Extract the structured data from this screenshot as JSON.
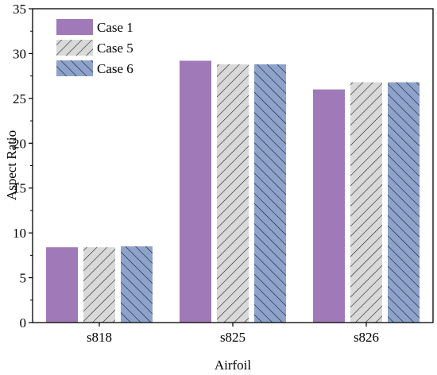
{
  "chart_data": {
    "type": "bar",
    "xlabel": "Airfoil",
    "ylabel": "Aspect Ratio",
    "categories": [
      "s818",
      "s825",
      "s826"
    ],
    "ylim": [
      0,
      35
    ],
    "yticks": [
      "0",
      "5",
      "10",
      "15",
      "20",
      "25",
      "30",
      "35"
    ],
    "grid": false,
    "legend_position": "top-left",
    "series": [
      {
        "name": "Case 1",
        "values": [
          8.4,
          29.2,
          26.0
        ],
        "color": "#a07ab8",
        "pattern": "solid"
      },
      {
        "name": "Case 5",
        "values": [
          8.4,
          28.8,
          26.8
        ],
        "color": "#d9d9d9",
        "pattern": "hatch-up"
      },
      {
        "name": "Case 6",
        "values": [
          8.5,
          28.8,
          26.8
        ],
        "color": "#8ea3cc",
        "pattern": "hatch-down"
      }
    ]
  }
}
